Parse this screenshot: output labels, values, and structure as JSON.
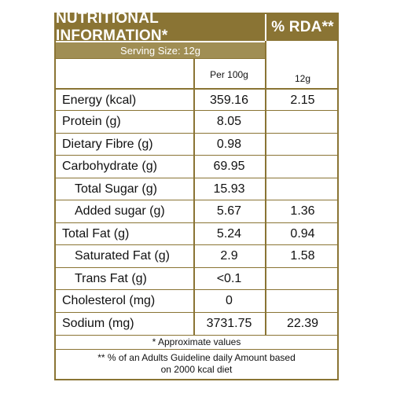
{
  "header": {
    "title": "NUTRITIONAL INFORMATION*",
    "rda_title": "% RDA**"
  },
  "serving_size": "Serving Size:  12g",
  "columns": {
    "per100g": "Per 100g",
    "rda_serving": "12g"
  },
  "rows": [
    {
      "label": "Energy (kcal)",
      "value": "359.16",
      "rda": "2.15"
    },
    {
      "label": "Protein (g)",
      "value": "8.05",
      "rda": ""
    },
    {
      "label": "Dietary Fibre (g)",
      "value": "0.98",
      "rda": ""
    },
    {
      "label": "Carbohydrate (g)",
      "value": "69.95",
      "rda": ""
    },
    {
      "label": "Total Sugar (g)",
      "value": "15.93",
      "rda": ""
    },
    {
      "label": "Added sugar (g)",
      "value": "5.67",
      "rda": "1.36"
    },
    {
      "label": "Total Fat (g)",
      "value": "5.24",
      "rda": "0.94"
    },
    {
      "label": "Saturated Fat (g)",
      "value": "2.9",
      "rda": "1.58"
    },
    {
      "label": "Trans Fat (g)",
      "value": "<0.1",
      "rda": ""
    },
    {
      "label": "Cholesterol (mg)",
      "value": "0",
      "rda": ""
    },
    {
      "label": "Sodium (mg)",
      "value": "3731.75",
      "rda": "22.39"
    }
  ],
  "footnotes": {
    "approx": "* Approximate values",
    "rda_note_line1": "** % of an Adults Guideline daily Amount based",
    "rda_note_line2": "on 2000 kcal diet"
  },
  "colors": {
    "brand_gold": "#8a7434",
    "serving_band": "#a08e54",
    "text": "#111111"
  }
}
